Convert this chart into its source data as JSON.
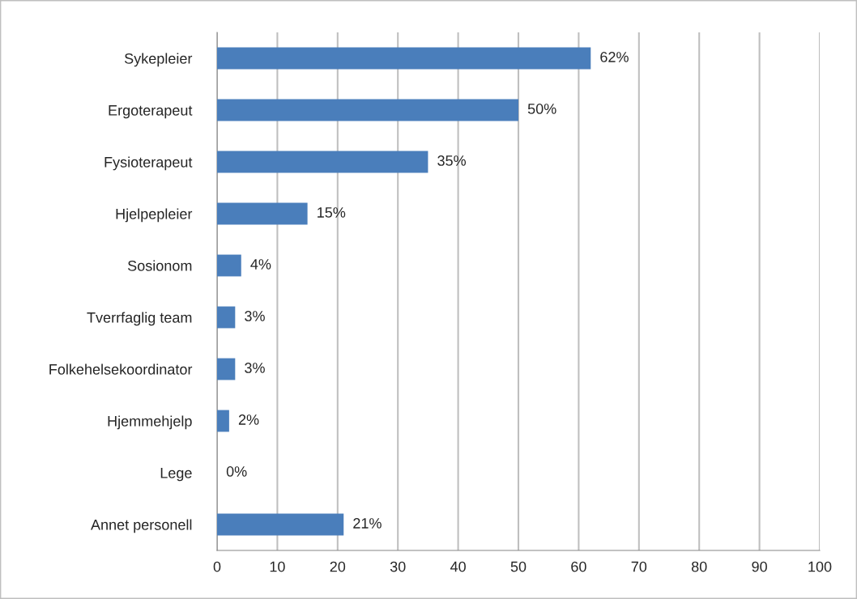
{
  "chart_data": {
    "type": "bar",
    "orientation": "horizontal",
    "categories": [
      "Sykepleier",
      "Ergoterapeut",
      "Fysioterapeut",
      "Hjelpepleier",
      "Sosionom",
      "Tverrfaglig team",
      "Folkehelsekoordinator",
      "Hjemmehjelp",
      "Lege",
      "Annet personell"
    ],
    "values": [
      62,
      50,
      35,
      15,
      4,
      3,
      3,
      2,
      0,
      21
    ],
    "value_labels": [
      "62%",
      "50%",
      "35%",
      "15%",
      "4%",
      "3%",
      "3%",
      "2%",
      "0%",
      "21%"
    ],
    "color": "#4a7ebb",
    "xlim": [
      0,
      100
    ],
    "xticks": [
      0,
      10,
      20,
      30,
      40,
      50,
      60,
      70,
      80,
      90,
      100
    ],
    "grid": "x"
  }
}
